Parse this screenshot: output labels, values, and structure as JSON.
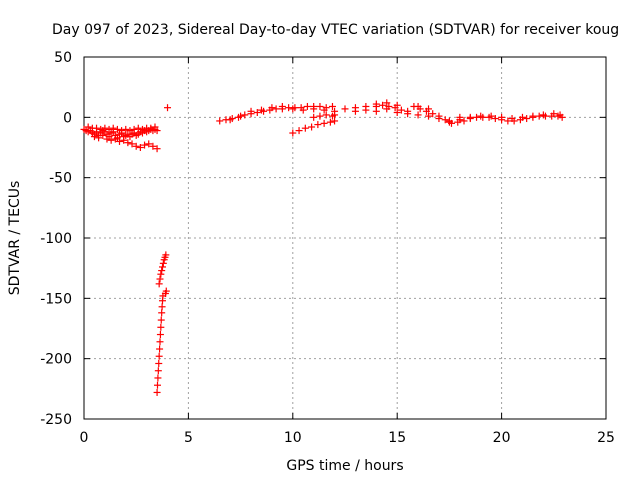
{
  "chart_data": {
    "type": "scatter",
    "title": "Day 097 of 2023, Sidereal Day-to-day VTEC variation (SDTVAR) for receiver koug",
    "xlabel": "GPS time / hours",
    "ylabel": "SDTVAR / TECUs",
    "xlim": [
      0,
      25
    ],
    "ylim": [
      -250,
      50
    ],
    "xticks": [
      0,
      5,
      10,
      15,
      20,
      25
    ],
    "yticks": [
      50,
      0,
      -50,
      -100,
      -150,
      -200,
      -250
    ],
    "grid": true,
    "marker": "+",
    "color": "#ff0000",
    "series": [
      {
        "name": "SDTVAR",
        "points": [
          [
            0.0,
            -10
          ],
          [
            0.1,
            -11
          ],
          [
            0.2,
            -12
          ],
          [
            0.3,
            -11
          ],
          [
            0.4,
            -13
          ],
          [
            0.5,
            -14
          ],
          [
            0.6,
            -12
          ],
          [
            0.7,
            -15
          ],
          [
            0.8,
            -13
          ],
          [
            0.9,
            -11
          ],
          [
            1.0,
            -12
          ],
          [
            1.1,
            -14
          ],
          [
            1.2,
            -16
          ],
          [
            1.3,
            -13
          ],
          [
            1.4,
            -12
          ],
          [
            1.5,
            -15
          ],
          [
            1.6,
            -17
          ],
          [
            1.7,
            -14
          ],
          [
            1.8,
            -13
          ],
          [
            1.9,
            -16
          ],
          [
            2.0,
            -15
          ],
          [
            2.1,
            -14
          ],
          [
            2.2,
            -16
          ],
          [
            2.3,
            -14
          ],
          [
            2.4,
            -13
          ],
          [
            2.5,
            -15
          ],
          [
            2.6,
            -14
          ],
          [
            2.7,
            -12
          ],
          [
            2.8,
            -13
          ],
          [
            2.9,
            -11
          ],
          [
            3.0,
            -12
          ],
          [
            3.1,
            -11
          ],
          [
            3.2,
            -10
          ],
          [
            3.3,
            -11
          ],
          [
            3.4,
            -10
          ],
          [
            3.5,
            -11
          ],
          [
            0.2,
            -8
          ],
          [
            0.4,
            -9
          ],
          [
            0.6,
            -9
          ],
          [
            0.8,
            -10
          ],
          [
            1.0,
            -9
          ],
          [
            1.2,
            -10
          ],
          [
            1.4,
            -9
          ],
          [
            1.6,
            -10
          ],
          [
            1.8,
            -11
          ],
          [
            2.0,
            -10
          ],
          [
            2.2,
            -11
          ],
          [
            2.4,
            -10
          ],
          [
            2.6,
            -9
          ],
          [
            2.8,
            -10
          ],
          [
            3.0,
            -9
          ],
          [
            3.2,
            -9
          ],
          [
            3.4,
            -8
          ],
          [
            0.5,
            -16
          ],
          [
            0.7,
            -17
          ],
          [
            0.9,
            -15
          ],
          [
            1.1,
            -18
          ],
          [
            1.3,
            -19
          ],
          [
            1.5,
            -18
          ],
          [
            1.7,
            -20
          ],
          [
            1.9,
            -19
          ],
          [
            2.1,
            -21
          ],
          [
            2.3,
            -22
          ],
          [
            2.5,
            -24
          ],
          [
            2.7,
            -25
          ],
          [
            2.9,
            -23
          ],
          [
            3.1,
            -22
          ],
          [
            3.3,
            -24
          ],
          [
            3.5,
            -26
          ],
          [
            4.0,
            8
          ],
          [
            3.5,
            -228
          ],
          [
            3.52,
            -222
          ],
          [
            3.54,
            -216
          ],
          [
            3.56,
            -210
          ],
          [
            3.58,
            -204
          ],
          [
            3.6,
            -198
          ],
          [
            3.62,
            -192
          ],
          [
            3.64,
            -186
          ],
          [
            3.66,
            -180
          ],
          [
            3.68,
            -174
          ],
          [
            3.7,
            -168
          ],
          [
            3.72,
            -162
          ],
          [
            3.74,
            -157
          ],
          [
            3.76,
            -152
          ],
          [
            3.78,
            -148
          ],
          [
            3.6,
            -138
          ],
          [
            3.64,
            -134
          ],
          [
            3.68,
            -130
          ],
          [
            3.72,
            -127
          ],
          [
            3.76,
            -124
          ],
          [
            3.8,
            -121
          ],
          [
            3.84,
            -118
          ],
          [
            3.88,
            -116
          ],
          [
            3.92,
            -114
          ],
          [
            3.9,
            -146
          ],
          [
            3.94,
            -144
          ],
          [
            6.5,
            -3
          ],
          [
            6.8,
            -2
          ],
          [
            7.1,
            -1
          ],
          [
            7.4,
            0
          ],
          [
            7.7,
            2
          ],
          [
            8.0,
            3
          ],
          [
            8.3,
            4
          ],
          [
            8.6,
            5
          ],
          [
            8.9,
            6
          ],
          [
            9.2,
            7
          ],
          [
            9.5,
            7
          ],
          [
            9.8,
            8
          ],
          [
            10.1,
            8
          ],
          [
            10.4,
            8
          ],
          [
            10.7,
            9
          ],
          [
            11.0,
            9
          ],
          [
            11.3,
            9
          ],
          [
            11.6,
            8
          ],
          [
            11.9,
            9
          ],
          [
            7.0,
            -2
          ],
          [
            7.5,
            1
          ],
          [
            8.0,
            5
          ],
          [
            8.5,
            6
          ],
          [
            9.0,
            8
          ],
          [
            9.5,
            9
          ],
          [
            10.0,
            7
          ],
          [
            10.5,
            6
          ],
          [
            11.0,
            7
          ],
          [
            11.5,
            6
          ],
          [
            12.0,
            5
          ],
          [
            10.0,
            -13
          ],
          [
            10.3,
            -11
          ],
          [
            10.6,
            -9
          ],
          [
            10.9,
            -8
          ],
          [
            11.2,
            -6
          ],
          [
            11.5,
            -5
          ],
          [
            11.8,
            -4
          ],
          [
            12.0,
            -3
          ],
          [
            11.0,
            0
          ],
          [
            11.3,
            1
          ],
          [
            11.6,
            2
          ],
          [
            11.9,
            1
          ],
          [
            12.0,
            2
          ],
          [
            12.5,
            7
          ],
          [
            13.0,
            8
          ],
          [
            13.5,
            9
          ],
          [
            14.0,
            9
          ],
          [
            14.3,
            10
          ],
          [
            14.6,
            9
          ],
          [
            14.9,
            8
          ],
          [
            15.2,
            6
          ],
          [
            15.5,
            5
          ],
          [
            15.8,
            9
          ],
          [
            16.1,
            7
          ],
          [
            16.4,
            5
          ],
          [
            16.7,
            3
          ],
          [
            17.0,
            1
          ],
          [
            17.3,
            -2
          ],
          [
            17.6,
            -5
          ],
          [
            17.9,
            -4
          ],
          [
            18.2,
            -3
          ],
          [
            18.5,
            -1
          ],
          [
            18.8,
            0
          ],
          [
            19.1,
            0
          ],
          [
            19.4,
            0
          ],
          [
            19.7,
            -1
          ],
          [
            20.0,
            -2
          ],
          [
            20.3,
            -3
          ],
          [
            20.6,
            -3
          ],
          [
            20.9,
            -2
          ],
          [
            21.2,
            -1
          ],
          [
            21.5,
            0
          ],
          [
            21.8,
            1
          ],
          [
            22.1,
            1
          ],
          [
            22.4,
            1
          ],
          [
            22.7,
            1
          ],
          [
            22.9,
            0
          ],
          [
            13.0,
            5
          ],
          [
            13.5,
            6
          ],
          [
            14.0,
            5
          ],
          [
            14.5,
            7
          ],
          [
            15.0,
            4
          ],
          [
            15.5,
            3
          ],
          [
            16.0,
            2
          ],
          [
            16.5,
            1
          ],
          [
            17.0,
            -1
          ],
          [
            17.5,
            -3
          ],
          [
            18.0,
            -2
          ],
          [
            18.5,
            0
          ],
          [
            19.0,
            1
          ],
          [
            19.5,
            1
          ],
          [
            20.0,
            0
          ],
          [
            20.5,
            -1
          ],
          [
            21.0,
            0
          ],
          [
            21.5,
            1
          ],
          [
            22.0,
            2
          ],
          [
            22.5,
            3
          ],
          [
            22.8,
            2
          ],
          [
            14.0,
            11
          ],
          [
            14.5,
            12
          ],
          [
            15.0,
            10
          ],
          [
            16.0,
            9
          ],
          [
            16.5,
            7
          ],
          [
            17.5,
            -4
          ],
          [
            18.0,
            0
          ]
        ]
      }
    ]
  }
}
